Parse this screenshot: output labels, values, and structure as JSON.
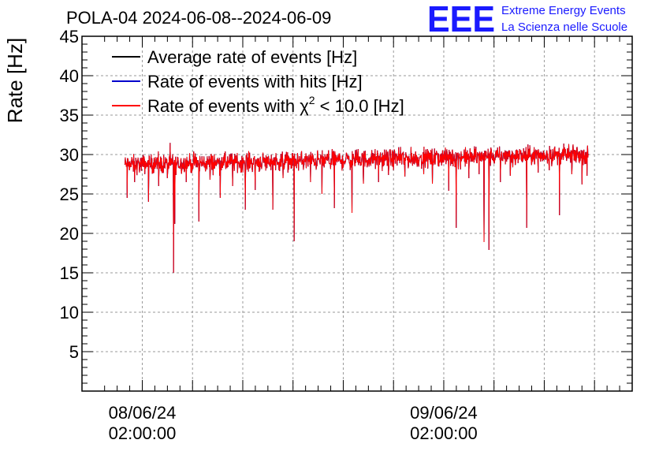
{
  "chart_data": {
    "type": "line",
    "title": "POLA-04 2024-06-08--2024-06-09",
    "ylabel": "Rate [Hz]",
    "xlabel": "",
    "ylim": [
      0,
      45
    ],
    "yticks": [
      5,
      10,
      15,
      20,
      25,
      30,
      35,
      40,
      45
    ],
    "x_time_ticks": [
      {
        "date": "08/06/24",
        "time": "02:00:00",
        "hour": 2
      },
      {
        "date": "09/06/24",
        "time": "02:00:00",
        "hour": 26
      }
    ],
    "x_range_hours": [
      -2.8,
      41.0
    ],
    "data_range_hours": [
      0.6,
      37.5
    ],
    "grid": true,
    "legend_position": "top-left",
    "series": [
      {
        "name": "Average rate of events [Hz]",
        "color": "#000000",
        "baseline_start": 28.7,
        "baseline_end": 30.0,
        "noise": 1.2
      },
      {
        "name": "Rate of events with hits [Hz]",
        "color": "#0000cc",
        "baseline_start": 28.7,
        "baseline_end": 30.0,
        "noise": 1.2
      },
      {
        "name": "Rate of events with χ² < 10.0 [Hz]",
        "color": "#ff0000",
        "baseline_start": 28.7,
        "baseline_end": 30.0,
        "noise": 1.2
      }
    ],
    "legend": {
      "avg_label": "Average rate of events [Hz]",
      "hits_label": "Rate of events with hits [Hz]",
      "chi_prefix": "Rate of events with χ",
      "chi_sup": "2",
      "chi_suffix": " < 10.0 [Hz]"
    },
    "dips": [
      {
        "hour": 0.8,
        "value": 24.5
      },
      {
        "hour": 1.4,
        "value": 26.5
      },
      {
        "hour": 2.5,
        "value": 24.0
      },
      {
        "hour": 3.3,
        "value": 26.0
      },
      {
        "hour": 4.0,
        "value": 27.0
      },
      {
        "hour": 4.5,
        "value": 15.0
      },
      {
        "hour": 4.6,
        "value": 21.2
      },
      {
        "hour": 5.5,
        "value": 26.5
      },
      {
        "hour": 6.5,
        "value": 21.5
      },
      {
        "hour": 7.4,
        "value": 26.8
      },
      {
        "hour": 8.2,
        "value": 24.5
      },
      {
        "hour": 9.2,
        "value": 26.0
      },
      {
        "hour": 10.2,
        "value": 23.0
      },
      {
        "hour": 11.0,
        "value": 25.5
      },
      {
        "hour": 12.4,
        "value": 23.0
      },
      {
        "hour": 13.2,
        "value": 27.0
      },
      {
        "hour": 14.1,
        "value": 19.0
      },
      {
        "hour": 15.4,
        "value": 26.5
      },
      {
        "hour": 16.3,
        "value": 25.0
      },
      {
        "hour": 17.3,
        "value": 23.2
      },
      {
        "hour": 18.7,
        "value": 22.6
      },
      {
        "hour": 19.6,
        "value": 26.3
      },
      {
        "hour": 20.8,
        "value": 26.5
      },
      {
        "hour": 21.6,
        "value": 27.4
      },
      {
        "hour": 22.9,
        "value": 27.2
      },
      {
        "hour": 24.4,
        "value": 27.5
      },
      {
        "hour": 25.1,
        "value": 26.3
      },
      {
        "hour": 26.4,
        "value": 25.4
      },
      {
        "hour": 27.0,
        "value": 20.7
      },
      {
        "hour": 28.0,
        "value": 27.0
      },
      {
        "hour": 28.8,
        "value": 27.5
      },
      {
        "hour": 29.2,
        "value": 18.9
      },
      {
        "hour": 29.6,
        "value": 17.9
      },
      {
        "hour": 30.5,
        "value": 26.5
      },
      {
        "hour": 31.3,
        "value": 27.3
      },
      {
        "hour": 32.6,
        "value": 20.7
      },
      {
        "hour": 33.5,
        "value": 27.7
      },
      {
        "hour": 34.4,
        "value": 28.0
      },
      {
        "hour": 35.2,
        "value": 22.3
      },
      {
        "hour": 36.2,
        "value": 27.5
      },
      {
        "hour": 37.0,
        "value": 26.2
      },
      {
        "hour": 37.4,
        "value": 27.3
      }
    ]
  },
  "brand": {
    "logo_text": "EEE",
    "line1": "Extreme Energy Events",
    "line2": "La Scienza nelle Scuole",
    "color": "#1a1aff"
  }
}
